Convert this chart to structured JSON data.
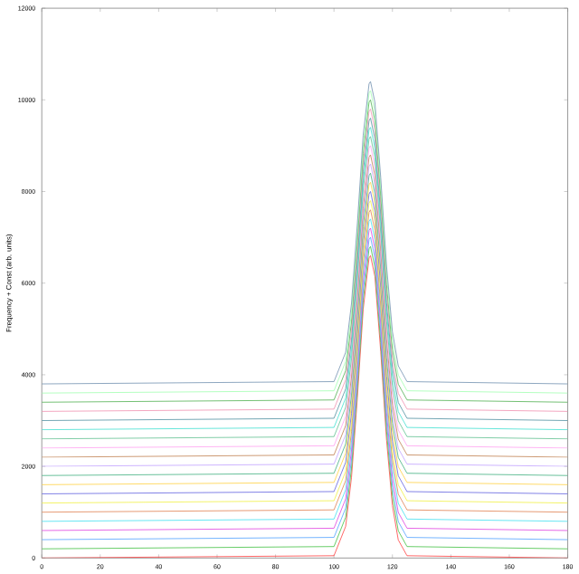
{
  "chart_data": {
    "type": "line",
    "ylabel": "Frequency + Const (arb. units)",
    "x": [
      0,
      100,
      104,
      106,
      108,
      110,
      112,
      112.5,
      114,
      116,
      118,
      120,
      122,
      125,
      180
    ],
    "xlim": [
      0,
      180
    ],
    "xticks": [
      0,
      20,
      40,
      60,
      80,
      100,
      120,
      140,
      160,
      180
    ],
    "ylim": [
      0,
      12000
    ],
    "yticks": [
      0,
      2000,
      4000,
      6000,
      8000,
      10000,
      12000
    ],
    "grid": false,
    "marker": "none",
    "line_style": "solid",
    "series": [
      {
        "color": "#ff4040",
        "values": [
          0,
          50,
          690,
          1760,
          3500,
          5430,
          6550,
          6600,
          6150,
          4500,
          2570,
          1140,
          395,
          50,
          0
        ]
      },
      {
        "color": "#40c040",
        "values": [
          200,
          250,
          890,
          1960,
          3700,
          5630,
          6750,
          6800,
          6350,
          4700,
          2770,
          1340,
          595,
          250,
          200
        ]
      },
      {
        "color": "#50a0ff",
        "values": [
          400,
          450,
          1090,
          2160,
          3900,
          5830,
          6950,
          7000,
          6550,
          4900,
          2970,
          1540,
          795,
          450,
          400
        ]
      },
      {
        "color": "#e040e0",
        "values": [
          600,
          650,
          1290,
          2360,
          4100,
          6030,
          7150,
          7200,
          6750,
          5100,
          3170,
          1740,
          995,
          650,
          600
        ]
      },
      {
        "color": "#40e0f0",
        "values": [
          800,
          850,
          1490,
          2560,
          4300,
          6230,
          7350,
          7400,
          6950,
          5300,
          3370,
          1940,
          1195,
          850,
          800
        ]
      },
      {
        "color": "#e08050",
        "values": [
          1000,
          1050,
          1690,
          2760,
          4500,
          6430,
          7550,
          7600,
          7150,
          5500,
          3570,
          2140,
          1395,
          1050,
          1000
        ]
      },
      {
        "color": "#f0f040",
        "values": [
          1200,
          1250,
          1890,
          2960,
          4700,
          6630,
          7750,
          7800,
          7350,
          5700,
          3770,
          2340,
          1595,
          1250,
          1200
        ]
      },
      {
        "color": "#6060e0",
        "values": [
          1400,
          1450,
          2090,
          3160,
          4900,
          6830,
          7950,
          8000,
          7550,
          5900,
          3970,
          2540,
          1795,
          1450,
          1400
        ]
      },
      {
        "color": "#ffd040",
        "values": [
          1600,
          1650,
          2290,
          3360,
          5100,
          7030,
          8150,
          8200,
          7750,
          6100,
          4170,
          2740,
          1995,
          1650,
          1600
        ]
      },
      {
        "color": "#40b080",
        "values": [
          1800,
          1850,
          2490,
          3560,
          5300,
          7230,
          8350,
          8400,
          7950,
          6300,
          4370,
          2940,
          2195,
          1850,
          1800
        ]
      },
      {
        "color": "#c0a0ff",
        "values": [
          2000,
          2050,
          2690,
          3760,
          5500,
          7430,
          8550,
          8600,
          8150,
          6500,
          4570,
          3140,
          2395,
          2050,
          2000
        ]
      },
      {
        "color": "#c08050",
        "values": [
          2200,
          2250,
          2890,
          3960,
          5700,
          7630,
          8750,
          8800,
          8350,
          6700,
          4770,
          3340,
          2595,
          2250,
          2200
        ]
      },
      {
        "color": "#ffa0f0",
        "values": [
          2400,
          2450,
          3090,
          4160,
          5900,
          7830,
          8950,
          9000,
          8550,
          6900,
          4970,
          3540,
          2795,
          2450,
          2400
        ]
      },
      {
        "color": "#60c090",
        "values": [
          2600,
          2650,
          3290,
          4360,
          6100,
          8030,
          9150,
          9200,
          8750,
          7100,
          5170,
          3740,
          2995,
          2650,
          2600
        ]
      },
      {
        "color": "#40e0d0",
        "values": [
          2800,
          2850,
          3490,
          4560,
          6300,
          8230,
          9350,
          9400,
          8950,
          7300,
          5370,
          3940,
          3195,
          2850,
          2800
        ]
      },
      {
        "color": "#5090a0",
        "values": [
          3000,
          3050,
          3690,
          4760,
          6500,
          8430,
          9550,
          9600,
          9150,
          7500,
          5570,
          4140,
          3395,
          3050,
          3000
        ]
      },
      {
        "color": "#f090b0",
        "values": [
          3200,
          3250,
          3890,
          4960,
          6700,
          8630,
          9750,
          9800,
          9350,
          7700,
          5770,
          4340,
          3595,
          3250,
          3200
        ]
      },
      {
        "color": "#50b050",
        "values": [
          3400,
          3450,
          4090,
          5160,
          6900,
          8830,
          9950,
          10000,
          9550,
          7900,
          5970,
          4540,
          3795,
          3450,
          3400
        ]
      },
      {
        "color": "#a0ffb0",
        "values": [
          3600,
          3650,
          4290,
          5360,
          7100,
          9030,
          10150,
          10200,
          9750,
          8100,
          6170,
          4740,
          3995,
          3650,
          3600
        ]
      },
      {
        "color": "#7090b0",
        "values": [
          3800,
          3850,
          4490,
          5560,
          7300,
          9230,
          10350,
          10400,
          9950,
          8300,
          6370,
          4940,
          4195,
          3850,
          3800
        ]
      }
    ]
  }
}
